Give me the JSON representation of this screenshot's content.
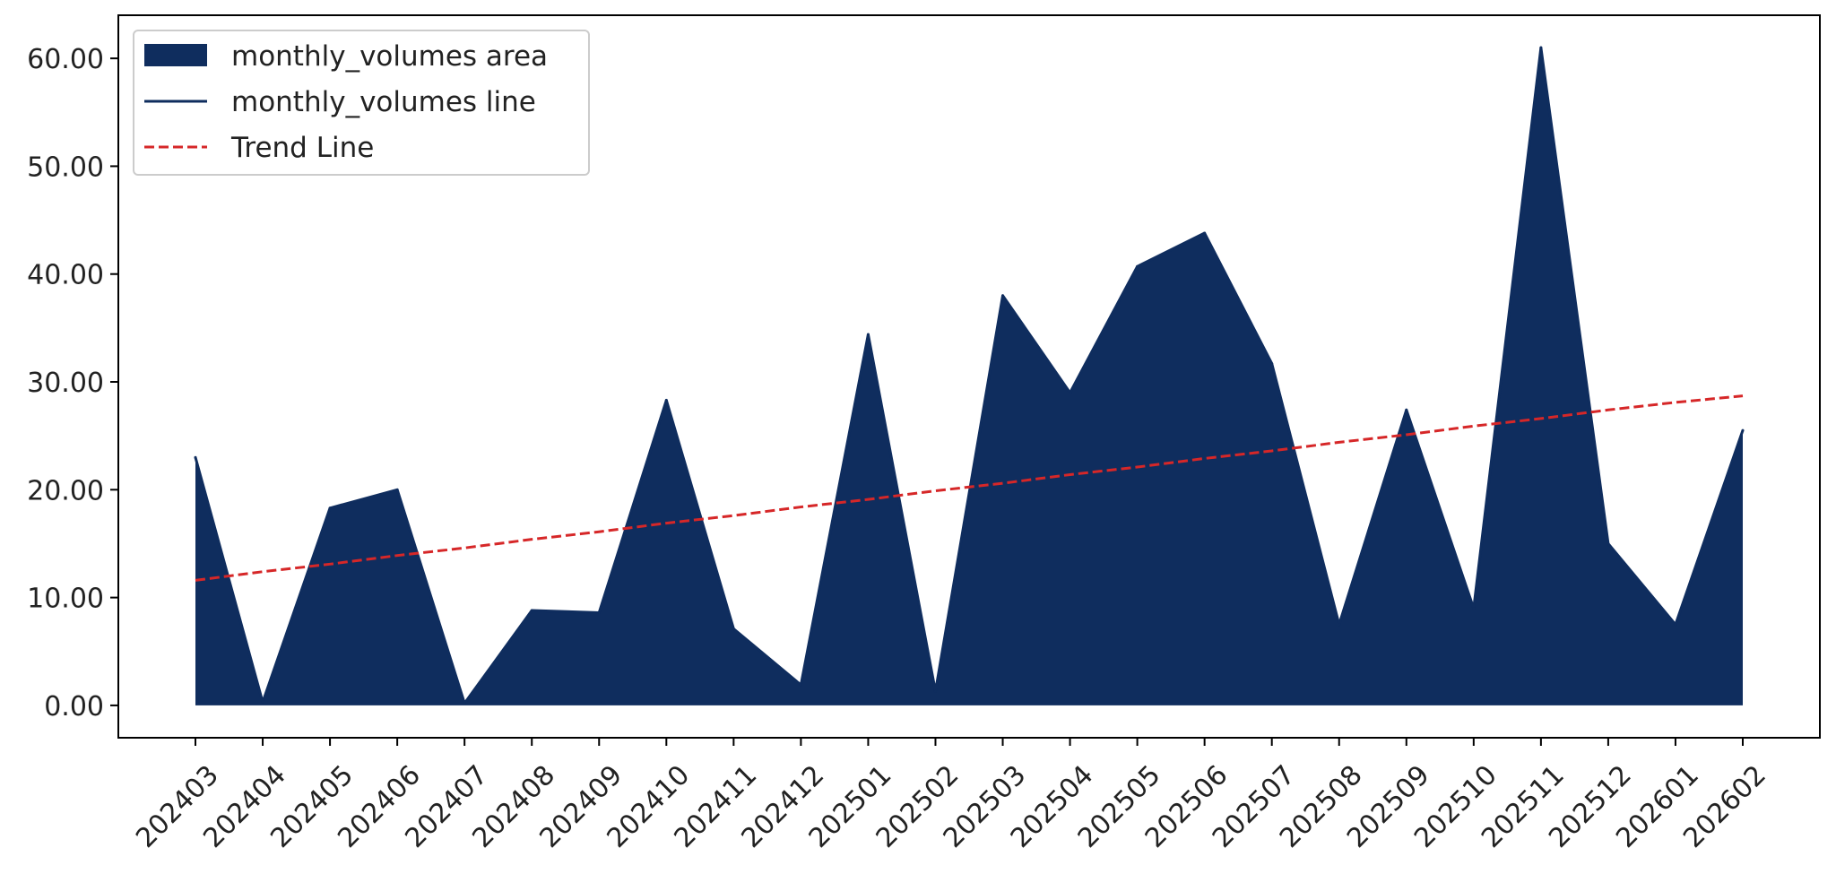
{
  "chart_data": {
    "type": "area",
    "title": "",
    "xlabel": "",
    "ylabel": "",
    "categories": [
      "202403",
      "202404",
      "202405",
      "202406",
      "202407",
      "202408",
      "202409",
      "202410",
      "202411",
      "202412",
      "202501",
      "202502",
      "202503",
      "202504",
      "202505",
      "202506",
      "202507",
      "202508",
      "202509",
      "202510",
      "202511",
      "202512",
      "202601",
      "202602"
    ],
    "series": [
      {
        "name": "monthly_volumes area",
        "kind": "area",
        "color": "#0f2d5e",
        "values": [
          23.0,
          0.3,
          18.3,
          20.0,
          0.2,
          8.8,
          8.6,
          28.3,
          7.1,
          1.9,
          34.4,
          1.3,
          38.0,
          29.0,
          40.7,
          43.8,
          31.7,
          7.5,
          27.4,
          9.0,
          61.0,
          15.0,
          7.5,
          25.5
        ]
      },
      {
        "name": "monthly_volumes line",
        "kind": "line",
        "color": "#0f2d5e"
      },
      {
        "name": "Trend Line",
        "kind": "trend",
        "color": "#d62728",
        "values": [
          11.6,
          12.4,
          13.1,
          13.9,
          14.6,
          15.4,
          16.1,
          16.9,
          17.6,
          18.4,
          19.1,
          19.9,
          20.6,
          21.4,
          22.1,
          22.9,
          23.6,
          24.4,
          25.1,
          25.9,
          26.6,
          27.4,
          28.1,
          28.7
        ]
      }
    ],
    "ylim": [
      -3,
      64
    ],
    "yticks": [
      "0.00",
      "10.00",
      "20.00",
      "30.00",
      "40.00",
      "50.00",
      "60.00"
    ],
    "ytick_values": [
      0,
      10,
      20,
      30,
      40,
      50,
      60
    ],
    "legend_position": "upper-left",
    "grid": false
  }
}
